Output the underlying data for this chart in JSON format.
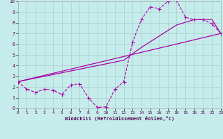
{
  "xlabel": "Windchill (Refroidissement éolien,°C)",
  "xlim": [
    0,
    23
  ],
  "ylim": [
    0,
    10
  ],
  "bg_color": "#c5ecea",
  "grid_color": "#a8cece",
  "line_color": "#aa00aa",
  "curve1_x": [
    0,
    1,
    2,
    3,
    4,
    5,
    6,
    7,
    8,
    9,
    10,
    11,
    12,
    13,
    14,
    15,
    16,
    17,
    18,
    19,
    20,
    21,
    22,
    23
  ],
  "curve1_y": [
    2.5,
    1.8,
    1.5,
    1.8,
    1.7,
    1.3,
    2.2,
    2.3,
    1.0,
    0.1,
    0.15,
    1.8,
    2.5,
    6.2,
    8.3,
    9.5,
    9.3,
    10.0,
    10.1,
    8.5,
    8.3,
    8.3,
    7.9,
    7.0
  ],
  "curve2_x": [
    0,
    23
  ],
  "curve2_y": [
    2.5,
    7.0
  ],
  "curve3_x": [
    0,
    12,
    14,
    18,
    20,
    21,
    22,
    23
  ],
  "curve3_y": [
    2.5,
    4.5,
    5.7,
    7.8,
    8.3,
    8.3,
    8.3,
    7.0
  ],
  "xticks": [
    0,
    1,
    2,
    3,
    4,
    5,
    6,
    7,
    8,
    9,
    10,
    11,
    12,
    13,
    14,
    15,
    16,
    17,
    18,
    19,
    20,
    21,
    22,
    23
  ],
  "yticks": [
    0,
    1,
    2,
    3,
    4,
    5,
    6,
    7,
    8,
    9,
    10
  ],
  "xlabel_fontsize": 5.0,
  "tick_fontsize": 4.5
}
